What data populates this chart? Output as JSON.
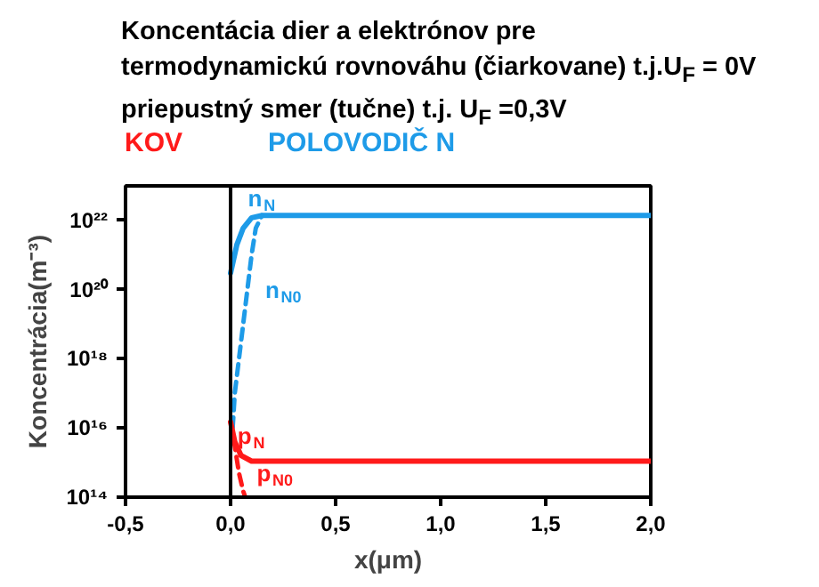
{
  "chart_data": {
    "type": "line",
    "title": "Koncentácia dier a elektrónov pre\ntermodynamickú rovnováhu (čiarkovane) t.j.U$_{F}$ = 0V\npriepustný smer (tučne) t.j. U$_{F}$ =0,3V",
    "xlabel": "x(μm)",
    "ylabel": "Koncentrácia(m⁻³)",
    "log": "y",
    "xlim": [
      -0.5,
      2.0
    ],
    "ylim": [
      100000000000000.0,
      1e+23
    ],
    "xticks": [
      {
        "value": -0.5,
        "label": "-0,5"
      },
      {
        "value": 0,
        "label": "0,0"
      },
      {
        "value": 0.5,
        "label": "0,5"
      },
      {
        "value": 1.0,
        "label": "1,0"
      },
      {
        "value": 1.5,
        "label": "1,5"
      },
      {
        "value": 2.0,
        "label": "2,0"
      }
    ],
    "yticks": [
      {
        "value": 100000000000000.0,
        "label": "10¹⁴"
      },
      {
        "value": 1e+16,
        "label": "10¹⁶"
      },
      {
        "value": 1e+18,
        "label": "10¹⁸"
      },
      {
        "value": 1e+20,
        "label": "10²⁰"
      },
      {
        "value": 1e+22,
        "label": "10²²"
      }
    ],
    "grid": false,
    "legend": false,
    "marker": "none",
    "series": [
      {
        "name": "n$_{N}$",
        "color": "#1e9be8",
        "line_style": "solid",
        "x": [
          0,
          0.03,
          0.06,
          0.1,
          0.15,
          2.0
        ],
        "values": [
          3e+20,
          2e+21,
          6e+21,
          1.2e+22,
          1.4e+22,
          1.4e+22
        ]
      },
      {
        "name": "n$_{N0}$",
        "color": "#1e9be8",
        "line_style": "dashed",
        "x": [
          0.01,
          0.02,
          0.04,
          0.06,
          0.08,
          0.1,
          0.12,
          0.15
        ],
        "values": [
          1e+16,
          1e+17,
          1e+18,
          1e+19,
          1e+20,
          1e+21,
          6e+21,
          1.4e+22
        ]
      },
      {
        "name": "p$_{N}$",
        "color": "#ff1a1a",
        "line_style": "solid",
        "x": [
          0,
          0.02,
          0.05,
          0.1,
          2.0
        ],
        "values": [
          1.5e+16,
          4000000000000000.0,
          1600000000000000.0,
          1100000000000000.0,
          1100000000000000.0
        ]
      },
      {
        "name": "p$_{N0}$",
        "color": "#ff1a1a",
        "line_style": "dashed",
        "x": [
          0,
          0.02,
          0.04,
          0.06,
          0.07
        ],
        "values": [
          1.5e+16,
          3000000000000000.0,
          500000000000000.0,
          150000000000000.0,
          100000000000000.0
        ]
      }
    ],
    "ref_lines": [
      {
        "axis": "x",
        "value": 0,
        "color": "#000000"
      }
    ],
    "annotations": [
      "KOV",
      "POLOVODIČ N"
    ]
  }
}
